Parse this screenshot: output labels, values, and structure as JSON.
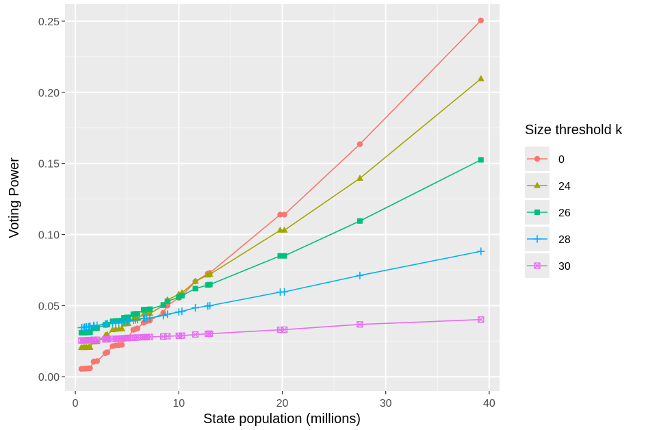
{
  "chart_data": {
    "type": "line",
    "title": "",
    "xlabel": "State population (millions)",
    "ylabel": "Voting Power",
    "xlim": [
      -1,
      41
    ],
    "ylim": [
      -0.01,
      0.262
    ],
    "x_ticks": [
      0,
      10,
      20,
      30,
      40
    ],
    "y_ticks": [
      0.0,
      0.05,
      0.1,
      0.15,
      0.2,
      0.25
    ],
    "x_tick_labels": [
      "0",
      "10",
      "20",
      "30",
      "40"
    ],
    "y_tick_labels": [
      "0.00",
      "0.05",
      "0.10",
      "0.15",
      "0.20",
      "0.25"
    ],
    "grid": true,
    "legend": {
      "title": "Size threshold k",
      "placement": "right"
    },
    "x": [
      0.58,
      0.75,
      0.9,
      1.05,
      1.1,
      1.3,
      1.35,
      1.42,
      1.76,
      1.8,
      2.1,
      2.9,
      3.0,
      3.1,
      3.6,
      3.9,
      4.2,
      4.5,
      4.7,
      5.0,
      5.1,
      5.6,
      5.8,
      6.0,
      6.6,
      6.7,
      6.9,
      7.2,
      8.5,
      8.9,
      10.0,
      10.3,
      11.6,
      12.8,
      13.0,
      19.8,
      20.2,
      27.5,
      39.2
    ],
    "series": [
      {
        "name": "0",
        "color": "#F8766D",
        "marker": "circle",
        "values": [
          0.0055,
          0.0057,
          0.0057,
          0.0057,
          0.0058,
          0.0059,
          0.0059,
          0.006,
          0.0105,
          0.0108,
          0.011,
          0.0165,
          0.017,
          0.0172,
          0.0215,
          0.022,
          0.0222,
          0.0224,
          0.0265,
          0.027,
          0.0275,
          0.033,
          0.0335,
          0.034,
          0.038,
          0.0385,
          0.039,
          0.0395,
          0.045,
          0.05,
          0.0555,
          0.057,
          0.067,
          0.0725,
          0.073,
          0.114,
          0.114,
          0.1635,
          0.2505
        ]
      },
      {
        "name": "24",
        "color": "#A3A500",
        "marker": "triangle",
        "values": [
          0.0205,
          0.0205,
          0.0205,
          0.0205,
          0.0206,
          0.0206,
          0.0207,
          0.0207,
          0.0245,
          0.0246,
          0.0247,
          0.029,
          0.0292,
          0.0294,
          0.033,
          0.0333,
          0.0335,
          0.0337,
          0.037,
          0.0373,
          0.0375,
          0.0405,
          0.0408,
          0.041,
          0.044,
          0.0442,
          0.0443,
          0.0445,
          0.05,
          0.054,
          0.058,
          0.059,
          0.067,
          0.0715,
          0.072,
          0.103,
          0.103,
          0.1395,
          0.2095
        ]
      },
      {
        "name": "26",
        "color": "#00BF7D",
        "marker": "square",
        "values": [
          0.031,
          0.031,
          0.031,
          0.0311,
          0.0311,
          0.0312,
          0.0312,
          0.0313,
          0.034,
          0.0341,
          0.0342,
          0.0365,
          0.0366,
          0.0367,
          0.039,
          0.0392,
          0.0393,
          0.0395,
          0.0415,
          0.0417,
          0.0418,
          0.044,
          0.0442,
          0.0443,
          0.047,
          0.0472,
          0.0473,
          0.0475,
          0.0505,
          0.053,
          0.056,
          0.057,
          0.062,
          0.0645,
          0.0648,
          0.085,
          0.085,
          0.1095,
          0.1525
        ]
      },
      {
        "name": "28",
        "color": "#00B0F6",
        "marker": "plus",
        "values": [
          0.0345,
          0.0347,
          0.0348,
          0.035,
          0.0351,
          0.0352,
          0.0353,
          0.0354,
          0.036,
          0.0361,
          0.0362,
          0.037,
          0.0371,
          0.0372,
          0.0378,
          0.038,
          0.0381,
          0.0383,
          0.0388,
          0.039,
          0.0392,
          0.0398,
          0.04,
          0.0402,
          0.041,
          0.0411,
          0.0412,
          0.0414,
          0.043,
          0.044,
          0.0455,
          0.046,
          0.0485,
          0.0497,
          0.05,
          0.0595,
          0.0597,
          0.0712,
          0.0882
        ]
      },
      {
        "name": "30",
        "color": "#E76BF3",
        "marker": "boxed-x",
        "values": [
          0.0255,
          0.0255,
          0.0256,
          0.0256,
          0.0256,
          0.0257,
          0.0257,
          0.0257,
          0.0259,
          0.026,
          0.026,
          0.0263,
          0.0263,
          0.0264,
          0.0266,
          0.0267,
          0.0268,
          0.0269,
          0.0271,
          0.0272,
          0.0273,
          0.0274,
          0.0275,
          0.0276,
          0.0278,
          0.0278,
          0.0279,
          0.028,
          0.0283,
          0.0285,
          0.0288,
          0.0289,
          0.0297,
          0.0302,
          0.0303,
          0.033,
          0.0331,
          0.0368,
          0.0402
        ]
      }
    ]
  }
}
